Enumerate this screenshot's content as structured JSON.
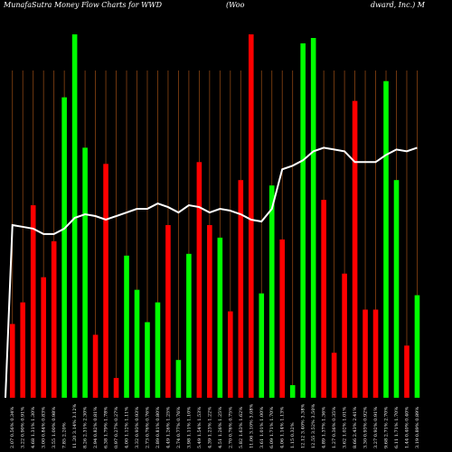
{
  "header": {
    "title_left": "MunafaSutra  Money Flow  Charts for WWD",
    "title_mid": "(Woo",
    "title_right": "dward,  Inc.) M"
  },
  "colors": {
    "background": "#000000",
    "up": "#00ff00",
    "down": "#ff0000",
    "line": "#ffffff",
    "gridline": "#8b4513"
  },
  "chart_data": {
    "type": "bar",
    "title": "MunafaSutra  Money Flow  Charts for WWD (Woodward, Inc.) M",
    "xlabel": "",
    "ylabel": "",
    "ylim": [
      0,
      100
    ],
    "grid": true,
    "categories": [
      "2.07 0.56% 0.34%",
      "3.22 0.90% 0.91%",
      "4.68 1.31% 1.30%",
      "3.00 0.84% 0.83%",
      "3.55 1.00% 0.98%",
      "7.85 2.20%",
      "11.20 3.14% 3.12%",
      "8.26 2.31% 2.30%",
      "2.94 0.82% 0.81%",
      "6.38 1.79% 1.78%",
      "0.97 0.27% 0.27%",
      "4.00 1.12% 1.11%",
      "3.32 0.93% 0.93%",
      "2.73 0.76% 0.76%",
      "2.89 0.81% 0.80%",
      "4.49 1.26% 1.25%",
      "2.74 0.77% 0.76%",
      "3.98 1.11% 1.10%",
      "5.49 1.54% 1.53%",
      "4.39 1.23% 1.22%",
      "4.51 1.26% 1.25%",
      "2.70 0.76% 0.75%",
      "5.82 1.63% 1.62%",
      "11.06 3.10% 3.08%",
      "3.61 1.01% 1.00%",
      "6.09 1.71% 1.70%",
      "4.06 1.14% 1.13%",
      "1.15 0.32%",
      "12.12 3.40% 3.38%",
      "12.55 3.52% 3.50%",
      "4.89 1.37% 1.36%",
      "1.27 0.36% 0.35%",
      "3.62 1.02% 1.01%",
      "8.66 2.43% 2.41%",
      "3.30 0.93% 0.92%",
      "3.27 0.92% 0.91%",
      "9.68 2.71% 2.70%",
      "6.11 1.71% 1.70%",
      "1.44 0.40% 0.40%",
      "3.19 0.89% 0.89%"
    ],
    "bar_colors": [
      "red",
      "red",
      "red",
      "red",
      "red",
      "green",
      "green",
      "green",
      "red",
      "red",
      "red",
      "green",
      "green",
      "green",
      "green",
      "red",
      "green",
      "green",
      "red",
      "red",
      "green",
      "red",
      "red",
      "red",
      "green",
      "green",
      "red",
      "green",
      "green",
      "green",
      "red",
      "red",
      "red",
      "red",
      "red",
      "red",
      "green",
      "green",
      "red",
      "green"
    ],
    "series": [
      {
        "values": [
          20.5,
          26.5,
          53.5,
          33.5,
          43.5,
          83.5,
          101,
          69.5,
          17.5,
          65,
          5.5,
          39.5,
          30,
          21,
          26.5,
          48,
          10.5,
          40,
          65.5,
          48,
          44.5,
          24,
          60.5,
          101,
          29,
          59,
          44,
          3.5,
          98.5,
          100,
          55,
          12.5,
          34.5,
          82.5,
          24.5,
          24.5,
          88,
          60.5,
          14.5,
          28.5
        ]
      },
      {
        "values": [
          48,
          47.5,
          47,
          45.5,
          45.5,
          47,
          50,
          51,
          50.5,
          49.5,
          50.5,
          51.5,
          52.5,
          52.5,
          54,
          53,
          51.5,
          53.5,
          53,
          51.5,
          52.5,
          52,
          51,
          49.5,
          49,
          52.5,
          63.5,
          64.5,
          66,
          68.5,
          69.5,
          69,
          68.5,
          65.5,
          65.5,
          65.5,
          67.5,
          69,
          68.5,
          69.5
        ]
      }
    ],
    "x_tick_labels": [
      "2.07 0.56% 0.34%",
      "3.22 0.90% 0.91%",
      "4.68 1.31% 1.30%",
      "3.00 0.84% 0.83%",
      "3.55 1.00% 0.98%",
      "7.85 2.20%",
      "11.20 3.14% 3.12%",
      "8.26 2.31% 2.30%",
      "2.94 0.82% 0.81%",
      "6.38 1.79% 1.78%",
      "0.97 0.27% 0.27%",
      "4.00 1.12% 1.11%",
      "3.32 0.93% 0.93%",
      "2.73 0.76% 0.76%",
      "2.89 0.81% 0.80%",
      "4.49 1.26% 1.25%",
      "2.74 0.77% 0.76%",
      "3.98 1.11% 1.10%",
      "5.49 1.54% 1.53%",
      "4.39 1.23% 1.22%",
      "4.51 1.26% 1.25%",
      "2.70 0.76% 0.75%",
      "5.82 1.63% 1.62%",
      "11.06 3.10% 3.08%",
      "3.61 1.01% 1.00%",
      "6.09 1.71% 1.70%",
      "4.06 1.14% 1.13%",
      "1.15 0.32%",
      "12.12 3.40% 3.38%",
      "12.55 3.52% 3.50%",
      "4.89 1.37% 1.36%",
      "1.27 0.36% 0.35%",
      "3.62 1.02% 1.01%",
      "8.66 2.43% 2.41%",
      "3.30 0.93% 0.92%",
      "3.27 0.92% 0.91%",
      "9.68 2.71% 2.70%",
      "6.11 1.71% 1.70%",
      "1.44 0.40% 0.40%",
      "3.19 0.89% 0.89%"
    ]
  }
}
